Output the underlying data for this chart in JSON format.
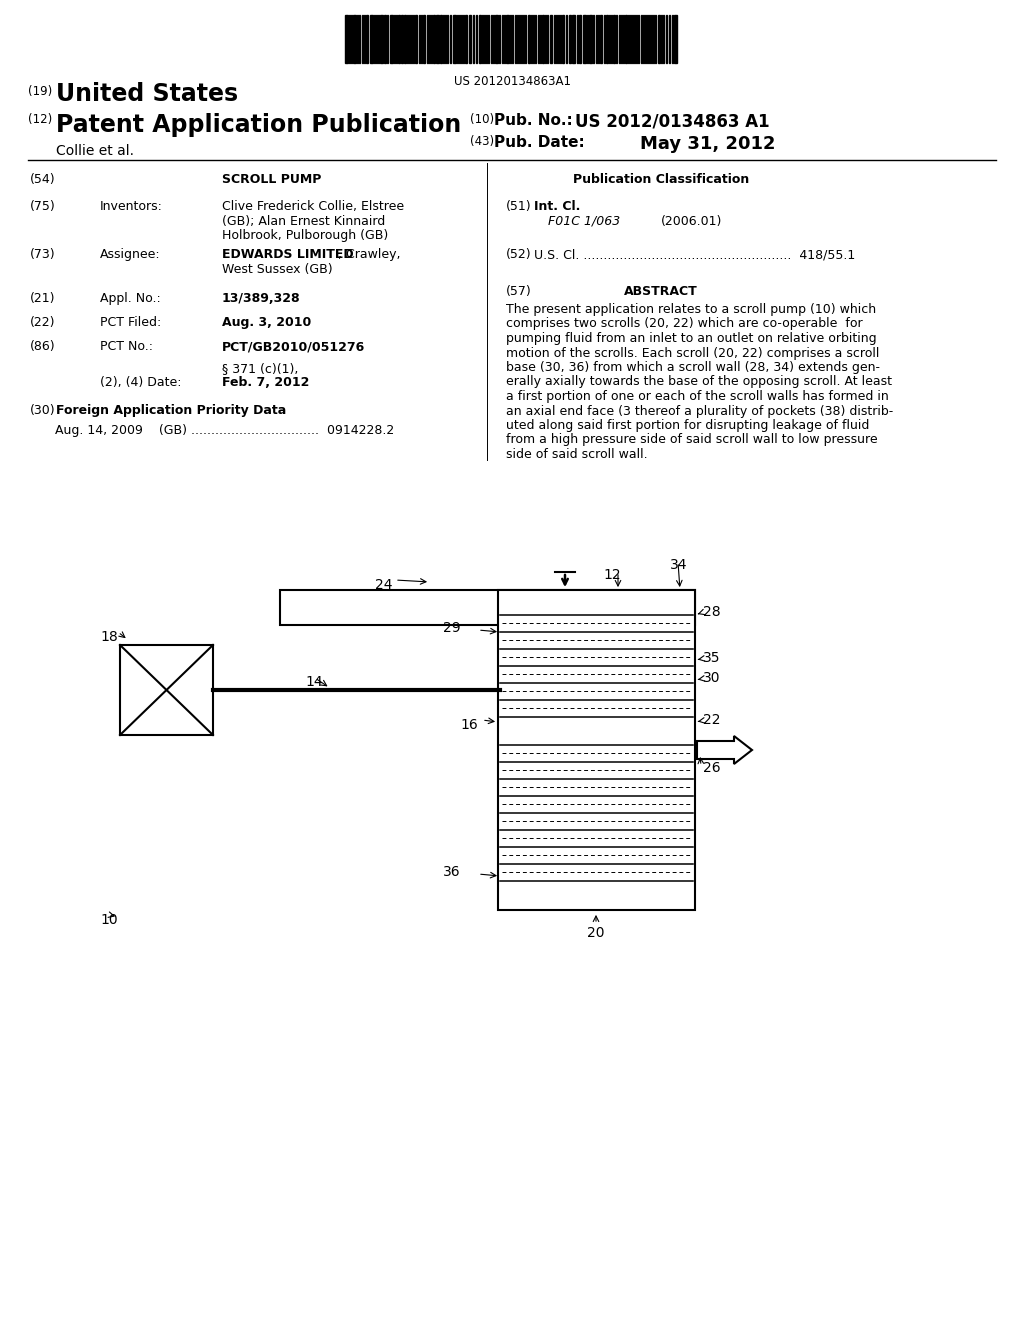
{
  "background_color": "#ffffff",
  "barcode_text": "US 20120134863A1",
  "abstract_lines": [
    "The present application relates to a scroll pump (10) which",
    "comprises two scrolls (20, 22) which are co-operable  for",
    "pumping fluid from an inlet to an outlet on relative orbiting",
    "motion of the scrolls. Each scroll (20, 22) comprises a scroll",
    "base (30, 36) from which a scroll wall (28, 34) extends gen-",
    "erally axially towards the base of the opposing scroll. At least",
    "a first portion of one or each of the scroll walls has formed in",
    "an axial end face (3 thereof a plurality of pockets (38) distrib-",
    "uted along said first portion for disrupting leakage of fluid",
    "from a high pressure side of said scroll wall to low pressure",
    "side of said scroll wall."
  ]
}
